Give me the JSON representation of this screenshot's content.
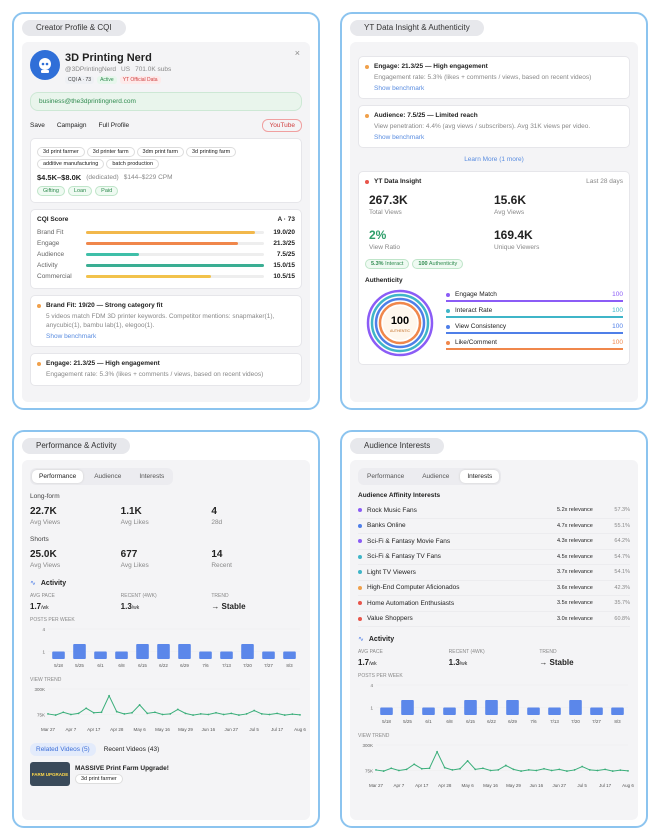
{
  "profile": {
    "tab": "Creator Profile & CQI",
    "close": "×",
    "name": "3D Printing Nerd",
    "handle": "@3DPrintingNerd",
    "country": "US",
    "subs": "701.0K subs",
    "badges": [
      "CQI A · 73",
      "Active",
      "YT Official Data"
    ],
    "email": "business@the3dprintingnerd.com",
    "actions": [
      "Save",
      "Campaign",
      "Full Profile"
    ],
    "youtube": "YouTube",
    "tags": [
      "3d print farmer",
      "3d printer farm",
      "3dm print farm",
      "3d printing farm",
      "additive manufacturing",
      "batch production"
    ],
    "price": "$4.5K–$8.0K",
    "price_note": "(dedicated)",
    "cpm": "$144–$229 CPM",
    "deals": [
      "Gifting",
      "Loan",
      "Paid"
    ],
    "cqi": {
      "title": "CQI Score",
      "grade": "A · 73",
      "rows": [
        {
          "label": "Brand Fit",
          "score": "19.0/20",
          "value": 19,
          "max": 20,
          "color": "#f2b84b"
        },
        {
          "label": "Engage",
          "score": "21.3/25",
          "value": 21.3,
          "max": 25,
          "color": "#f0874b"
        },
        {
          "label": "Audience",
          "score": "7.5/25",
          "value": 7.5,
          "max": 25,
          "color": "#3fbfa8"
        },
        {
          "label": "Activity",
          "score": "15.0/15",
          "value": 15,
          "max": 15,
          "color": "#3aae93"
        },
        {
          "label": "Commercial",
          "score": "10.5/15",
          "value": 10.5,
          "max": 15,
          "color": "#f2c24b"
        }
      ]
    },
    "insights": [
      {
        "title": "Brand Fit: 19/20 — Strong category fit",
        "text": "5 videos match FDM 3D printer keywords. Competitor mentions: snapmaker(1), anycubic(1), bambu lab(1), elegoo(1).",
        "link": "Show benchmark"
      },
      {
        "title": "Engage: 21.3/25 — High engagement",
        "text": "Engagement rate: 5.3% (likes + comments / views, based on recent videos)"
      }
    ]
  },
  "insight": {
    "tab": "YT Data Insight & Authenticity",
    "cards": [
      {
        "title": "Engage: 21.3/25 — High engagement",
        "text": "Engagement rate: 5.3% (likes + comments / views, based on recent videos)",
        "link": "Show benchmark"
      },
      {
        "title": "Audience: 7.5/25 — Limited reach",
        "text": "View penetration: 4.4% (avg views / subscribers). Avg 31K views per video.",
        "link": "Show benchmark"
      }
    ],
    "more": "Learn More (1 more)",
    "data_title": "YT Data Insight",
    "period": "Last 28 days",
    "stats": [
      {
        "value": "267.3K",
        "label": "Total Views"
      },
      {
        "value": "15.6K",
        "label": "Avg Views"
      },
      {
        "value": "2%",
        "label": "View Ratio",
        "color": "#2e9e6a"
      },
      {
        "value": "169.4K",
        "label": "Unique Viewers"
      }
    ],
    "chips": [
      {
        "value": "5.3%",
        "label": "Interact"
      },
      {
        "value": "100",
        "label": "Authenticity"
      }
    ],
    "auth": {
      "title": "Authenticity",
      "score": "100",
      "score_label": "AUTHENTIC",
      "rows": [
        {
          "label": "Engage Match",
          "value": 100,
          "color": "#8b5cf6"
        },
        {
          "label": "Interact Rate",
          "value": 100,
          "color": "#3fb5c8"
        },
        {
          "label": "View Consistency",
          "value": 100,
          "color": "#4f7fe8"
        },
        {
          "label": "Like/Comment",
          "value": 100,
          "color": "#f0874b"
        }
      ]
    }
  },
  "performance": {
    "tab": "Performance & Activity",
    "tabs": [
      "Performance",
      "Audience",
      "Interests"
    ],
    "groups": [
      {
        "title": "Long-form",
        "stats": [
          {
            "value": "22.7K",
            "label": "Avg Views"
          },
          {
            "value": "1.1K",
            "label": "Avg Likes"
          },
          {
            "value": "4",
            "label": "28d"
          }
        ]
      },
      {
        "title": "Shorts",
        "stats": [
          {
            "value": "25.0K",
            "label": "Avg Views"
          },
          {
            "value": "677",
            "label": "Avg Likes"
          },
          {
            "value": "14",
            "label": "Recent"
          }
        ]
      }
    ],
    "bottom_tabs": [
      "Related Videos (5)",
      "Recent Videos (43)"
    ],
    "video": {
      "thumb": "FARM UPGRADE",
      "title": "MASSIVE Print Farm Upgrade!",
      "tag": "3d print farmer"
    }
  },
  "interests": {
    "tab": "Audience Interests",
    "title": "Audience Affinity Interests",
    "rows": [
      {
        "name": "Rock Music Fans",
        "relevance": "5.2x relevance",
        "share": "57.3%",
        "color": "#8b5cf6"
      },
      {
        "name": "Banks Online",
        "relevance": "4.7x relevance",
        "share": "55.1%",
        "color": "#4f7fe8"
      },
      {
        "name": "Sci-Fi & Fantasy Movie Fans",
        "relevance": "4.3x relevance",
        "share": "64.2%",
        "color": "#8b5cf6"
      },
      {
        "name": "Sci-Fi & Fantasy TV Fans",
        "relevance": "4.5x relevance",
        "share": "54.7%",
        "color": "#3fb5c8"
      },
      {
        "name": "Light TV Viewers",
        "relevance": "3.7x relevance",
        "share": "54.1%",
        "color": "#3fb5c8"
      },
      {
        "name": "High-End Computer Aficionados",
        "relevance": "3.6x relevance",
        "share": "42.3%",
        "color": "#f0a04b"
      },
      {
        "name": "Home Automation Enthusiasts",
        "relevance": "3.5x relevance",
        "share": "35.7%",
        "color": "#e8554b"
      },
      {
        "name": "Value Shoppers",
        "relevance": "3.0x relevance",
        "share": "60.8%",
        "color": "#e8554b"
      }
    ]
  },
  "activity": {
    "title": "Activity",
    "metrics": [
      {
        "label": "AVG PACE",
        "value": "1.7",
        "unit": "/wk"
      },
      {
        "label": "RECENT (4WK)",
        "value": "1.3",
        "unit": "/wk"
      },
      {
        "label": "TREND",
        "value": "→ Stable"
      }
    ],
    "posts": {
      "type": "bar",
      "title": "POSTS PER WEEK",
      "categories": [
        "5/18",
        "5/25",
        "6/1",
        "6/8",
        "6/15",
        "6/22",
        "6/29",
        "7/6",
        "7/13",
        "7/20",
        "7/27",
        "8/3"
      ],
      "values": [
        1,
        2,
        1,
        1,
        2,
        2,
        2,
        1,
        1,
        2,
        1,
        1
      ],
      "color": "#5b87ea",
      "ylim": [
        0,
        4
      ],
      "yticks": [
        1,
        4
      ]
    },
    "trend": {
      "type": "line",
      "title": "VIEW TREND",
      "categories": [
        "Mar 27",
        null,
        null,
        "Apr 7",
        null,
        null,
        "Apr 17",
        null,
        null,
        "Apr 28",
        null,
        null,
        "May 6",
        null,
        null,
        "May 16",
        null,
        null,
        "May 29",
        null,
        null,
        "Jun 16",
        null,
        null,
        "Jun 27",
        null,
        null,
        "Jul 5",
        null,
        null,
        "Jul 17",
        null,
        null,
        "Aug 6"
      ],
      "values": [
        80000,
        70000,
        95000,
        75000,
        85000,
        130000,
        90000,
        95000,
        240000,
        100000,
        80000,
        90000,
        160000,
        85000,
        95000,
        75000,
        80000,
        120000,
        85000,
        70000,
        80000,
        75000,
        90000,
        75000,
        85000,
        70000,
        80000,
        110000,
        80000,
        75000,
        85000,
        70000,
        78000,
        72000
      ],
      "color": "#3aae7a",
      "ylim": [
        0,
        300000
      ],
      "yticks": [
        {
          "value": 75000,
          "label": "75K"
        },
        {
          "value": 300000,
          "label": "300K"
        }
      ]
    }
  }
}
